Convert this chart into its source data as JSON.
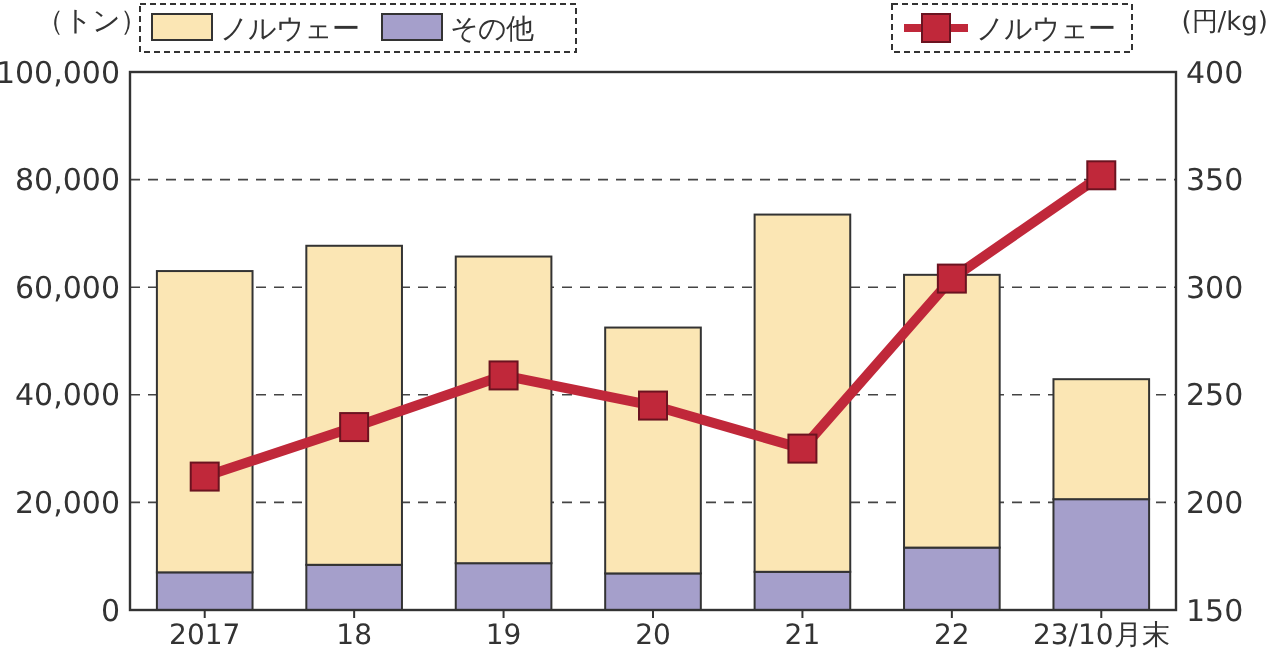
{
  "chart_data": {
    "type": "bar",
    "stacked": true,
    "ylabel": "（トン）",
    "y2label": "(円/kg)",
    "categories": [
      "2017",
      "18",
      "19",
      "20",
      "21",
      "22",
      "23/10月末"
    ],
    "series": [
      {
        "name": "その他",
        "color": "#a59fcb",
        "values": [
          7000,
          8400,
          8700,
          6800,
          7100,
          11600,
          20600
        ]
      },
      {
        "name": "ノルウェー",
        "color": "#fbe6b4",
        "values": [
          56000,
          59300,
          57000,
          45700,
          66400,
          50700,
          22300
        ]
      },
      {
        "name": "ノルウェー",
        "type": "line",
        "axis": "y2",
        "color": "#c0283a",
        "marker": "square",
        "line_style": "solid",
        "values": [
          212,
          235,
          259,
          245,
          225,
          304,
          352
        ]
      }
    ],
    "ylim": [
      0,
      100000
    ],
    "yticks": [
      {
        "value": 0,
        "label": "0"
      },
      {
        "value": 20000,
        "label": "20,000"
      },
      {
        "value": 40000,
        "label": "40,000"
      },
      {
        "value": 60000,
        "label": "60,000"
      },
      {
        "value": 80000,
        "label": "80,000"
      },
      {
        "value": 100000,
        "label": "100,000"
      }
    ],
    "y2lim": [
      150,
      400
    ],
    "y2ticks": [
      150,
      200,
      250,
      300,
      350,
      400
    ],
    "grid": "y",
    "legend": "top"
  }
}
